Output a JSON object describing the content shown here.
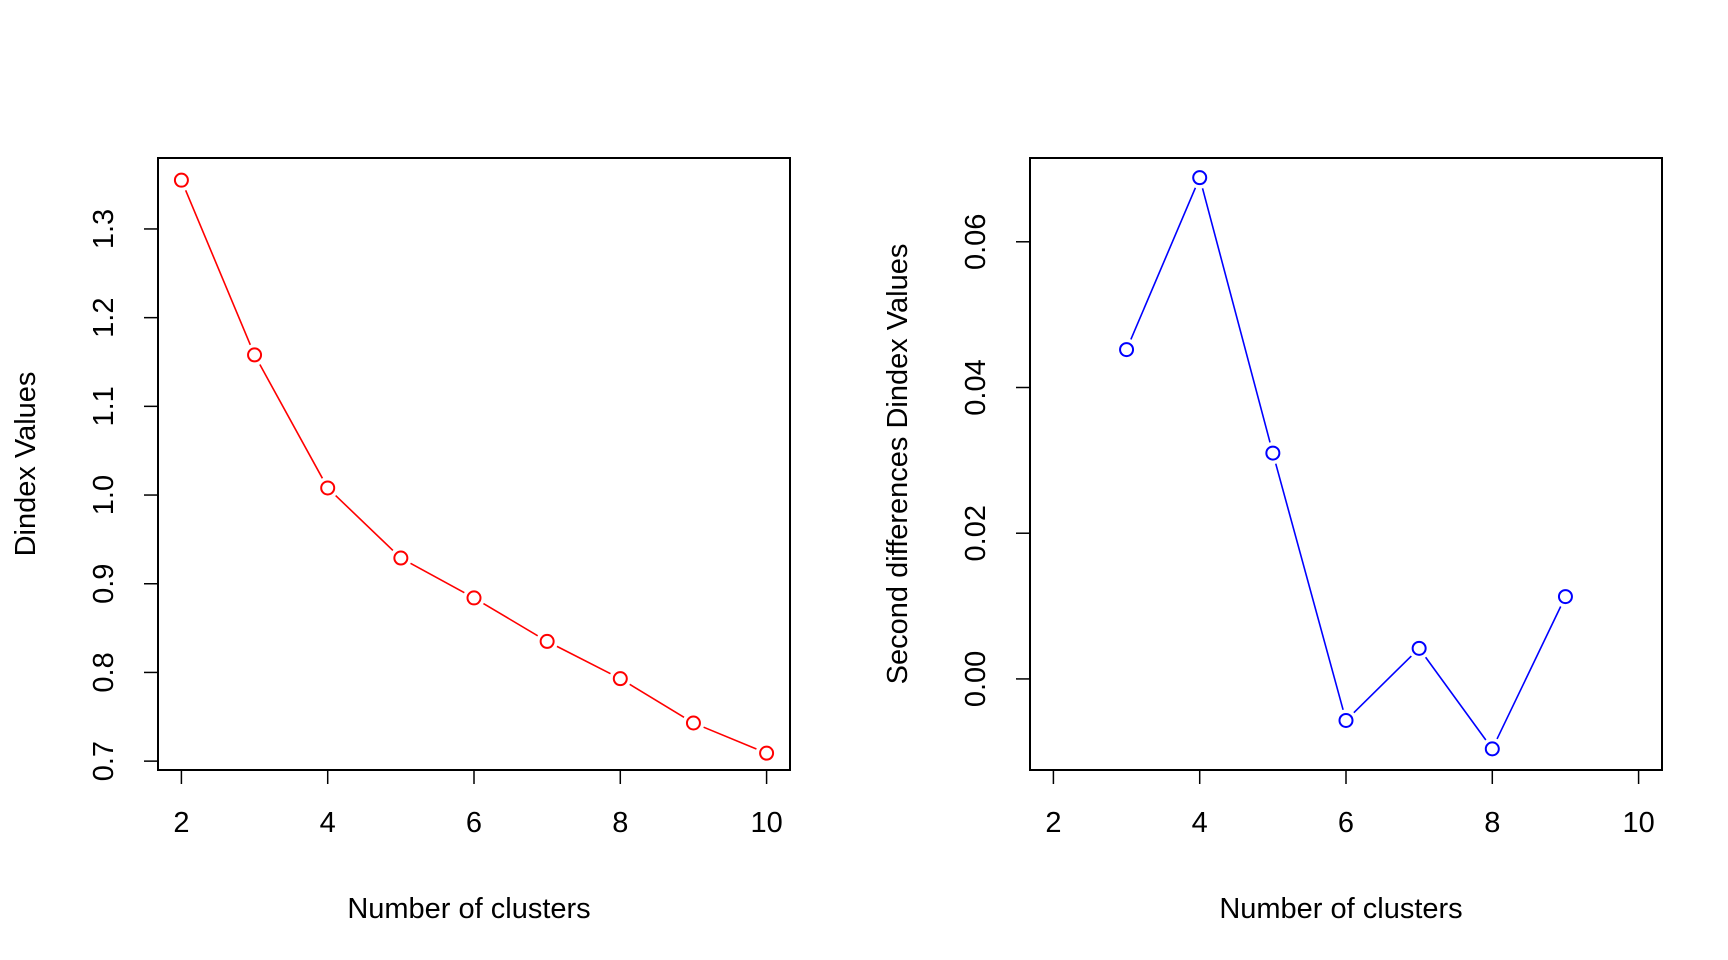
{
  "chart_data": [
    {
      "type": "line",
      "title": "",
      "xlabel": "Number of clusters",
      "ylabel": "Dindex Values",
      "xlim": [
        2,
        10
      ],
      "ylim": [
        0.69,
        1.38
      ],
      "x_ticks": [
        "2",
        "4",
        "6",
        "8",
        "10"
      ],
      "y_ticks": [
        "0.7",
        "0.8",
        "0.9",
        "1.0",
        "1.1",
        "1.2",
        "1.3"
      ],
      "x_tick_values": [
        2,
        4,
        6,
        8,
        10
      ],
      "y_tick_values": [
        0.7,
        0.8,
        0.9,
        1.0,
        1.1,
        1.2,
        1.3
      ],
      "grid": false,
      "color": "#ff0000",
      "marker": "open-circle",
      "series": [
        {
          "x": [
            2,
            3,
            4,
            5,
            6,
            7,
            8,
            9,
            10
          ],
          "values": [
            1.355,
            1.158,
            1.008,
            0.929,
            0.884,
            0.835,
            0.793,
            0.743,
            0.709
          ]
        }
      ]
    },
    {
      "type": "line",
      "title": "",
      "xlabel": "Number of clusters",
      "ylabel": "Second differences Dindex Values",
      "xlim": [
        2,
        10
      ],
      "ylim": [
        -0.0125,
        0.0715
      ],
      "x_ticks": [
        "2",
        "4",
        "6",
        "8",
        "10"
      ],
      "y_ticks": [
        "0.00",
        "0.02",
        "0.04",
        "0.06"
      ],
      "x_tick_values": [
        2,
        4,
        6,
        8,
        10
      ],
      "y_tick_values": [
        0.0,
        0.02,
        0.04,
        0.06
      ],
      "grid": false,
      "color": "#0000ff",
      "marker": "open-circle",
      "series": [
        {
          "x": [
            3,
            4,
            5,
            6,
            7,
            8,
            9
          ],
          "values": [
            0.0452,
            0.0688,
            0.031,
            -0.0057,
            0.0042,
            -0.0096,
            0.0113
          ]
        }
      ]
    }
  ]
}
